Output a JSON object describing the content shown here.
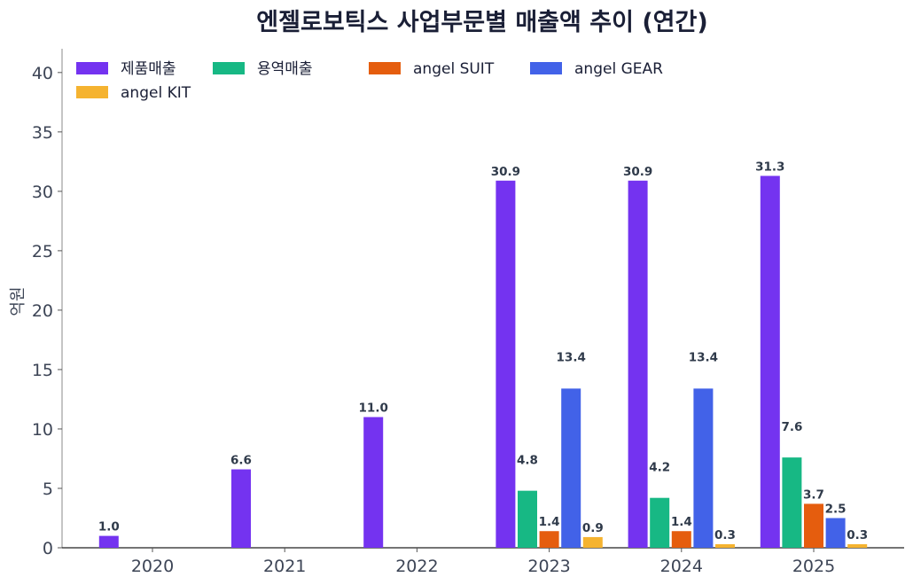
{
  "chart_data": {
    "type": "bar",
    "title": "엔젤로보틱스 사업부문별 매출액 추이 (연간)",
    "xlabel": "",
    "ylabel": "억원",
    "ylim": [
      0,
      42
    ],
    "yticks": [
      0,
      5,
      10,
      15,
      20,
      25,
      30,
      35,
      40
    ],
    "categories": [
      "2020",
      "2021",
      "2022",
      "2023",
      "2024",
      "2025"
    ],
    "legend_position": "top-left",
    "grid": false,
    "series": [
      {
        "name": "제품매출",
        "color": "#7433f0",
        "values": [
          1.0,
          6.6,
          11.0,
          30.9,
          30.9,
          31.3
        ]
      },
      {
        "name": "용역매출",
        "color": "#17b884",
        "values": [
          null,
          null,
          null,
          4.8,
          4.2,
          7.6
        ]
      },
      {
        "name": "angel SUIT",
        "color": "#e55d0e",
        "values": [
          null,
          null,
          null,
          1.4,
          1.4,
          3.7
        ]
      },
      {
        "name": "angel GEAR",
        "color": "#4262e8",
        "values": [
          null,
          null,
          null,
          13.4,
          13.4,
          2.5
        ]
      },
      {
        "name": "angel KIT",
        "color": "#f5b330",
        "values": [
          null,
          null,
          null,
          0.9,
          0.3,
          0.3
        ]
      }
    ]
  }
}
